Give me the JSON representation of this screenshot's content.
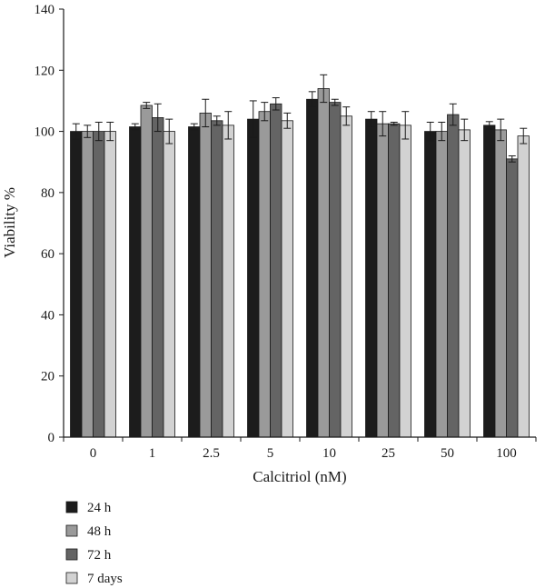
{
  "chart_data": {
    "type": "bar",
    "xlabel": "Calcitriol (nM)",
    "ylabel": "Viability %",
    "ylim": [
      0,
      140
    ],
    "yticks": [
      0,
      20,
      40,
      60,
      80,
      100,
      120,
      140
    ],
    "categories": [
      "0",
      "1",
      "2.5",
      "5",
      "10",
      "25",
      "50",
      "100"
    ],
    "grid": false,
    "legend_position": "bottom-left",
    "series": [
      {
        "name": "24 h",
        "color": "#1c1c1c",
        "values": [
          100,
          101.5,
          101.5,
          104,
          110.5,
          104,
          100,
          102
        ],
        "errors": [
          2.5,
          1,
          1,
          6,
          2.5,
          2.5,
          3,
          1.2
        ]
      },
      {
        "name": "48 h",
        "color": "#9a9a9a",
        "values": [
          100,
          108.5,
          106,
          106.5,
          114,
          102.5,
          100,
          100.5
        ],
        "errors": [
          2,
          1,
          4.5,
          3,
          4.5,
          4,
          3,
          3.5
        ]
      },
      {
        "name": "72 h",
        "color": "#646464",
        "values": [
          100,
          104.5,
          103.5,
          109,
          109.5,
          102.5,
          105.5,
          91
        ],
        "errors": [
          3,
          4.5,
          1.5,
          2,
          1,
          0.5,
          3.5,
          1
        ]
      },
      {
        "name": "7 days",
        "color": "#d2d2d2",
        "values": [
          100,
          100,
          102,
          103.5,
          105,
          102,
          100.5,
          98.5
        ],
        "errors": [
          3,
          4,
          4.5,
          2.5,
          3,
          4.5,
          3.5,
          2.5
        ]
      }
    ]
  }
}
